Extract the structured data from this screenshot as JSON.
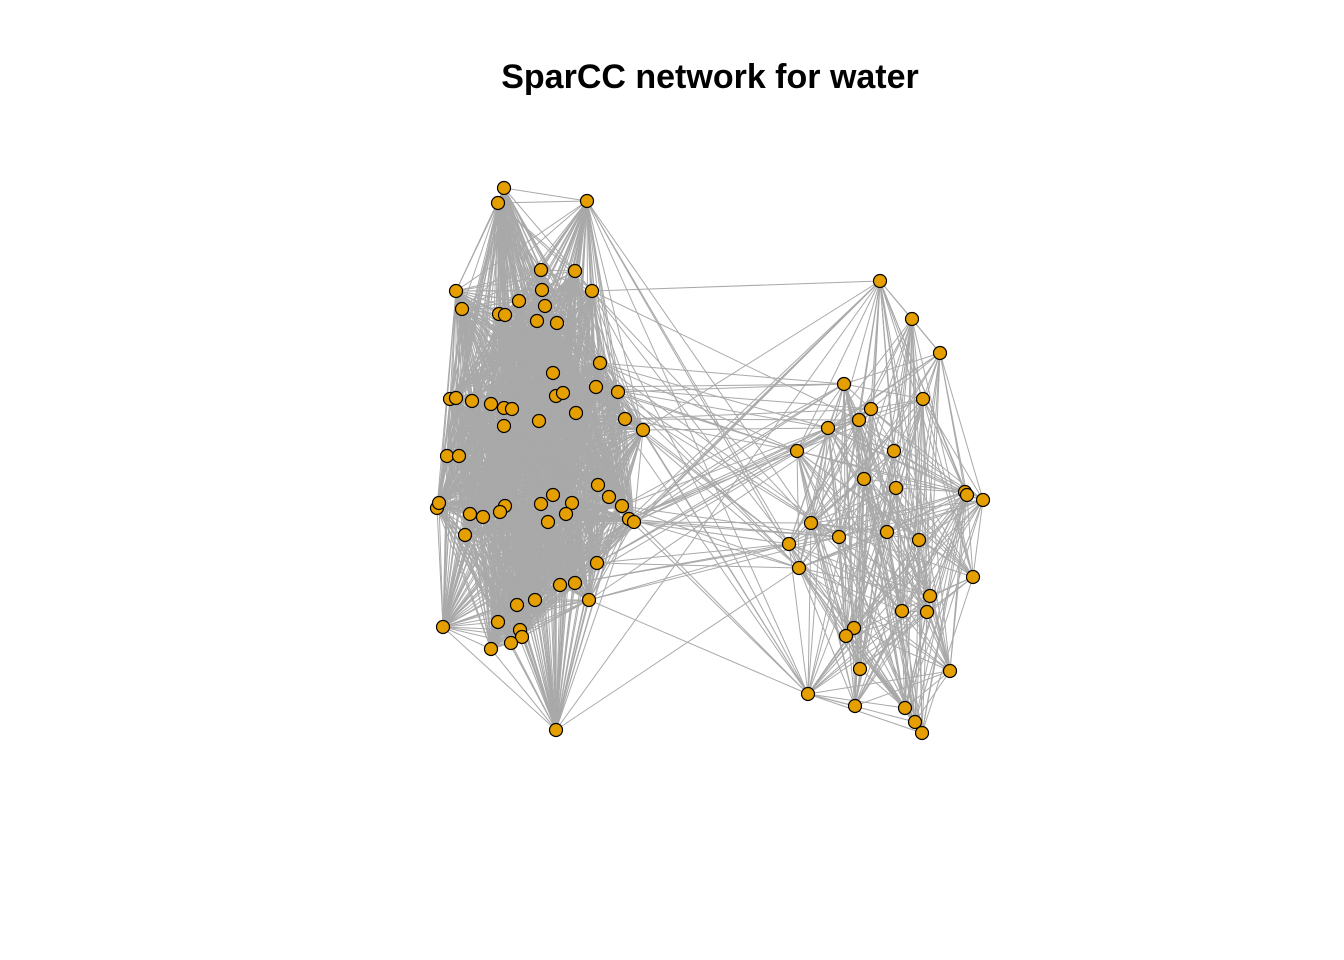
{
  "title": "SparCC network for water",
  "colors": {
    "background": "#ffffff",
    "node_fill": "#E69F00",
    "node_stroke": "#000000",
    "edge": "#A9A9A9"
  }
}
